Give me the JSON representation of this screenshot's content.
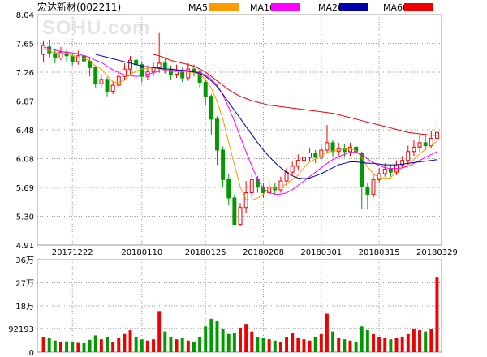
{
  "chart_data": {
    "type": "candlestick",
    "title": "宏达新材(002211)",
    "watermark": "SOHU.com",
    "legend": [
      {
        "name": "MA5",
        "color": "#ff9900"
      },
      {
        "name": "MA10",
        "color": "#ff00ff"
      },
      {
        "name": "MA20",
        "color": "#0000aa"
      },
      {
        "name": "MA60",
        "color": "#ee0000"
      }
    ],
    "colors": {
      "up": "#ee0000",
      "down": "#009900",
      "grid": "#999999",
      "frame": "#999999"
    },
    "price_axis": {
      "min": 4.91,
      "max": 8.04,
      "ticks": [
        "8.04",
        "7.65",
        "7.26",
        "6.87",
        "6.48",
        "6.08",
        "5.69",
        "5.30",
        "4.91"
      ]
    },
    "volume_axis": {
      "max": 360000,
      "ticks": [
        "36万",
        "27万",
        "18万",
        "92193",
        "0"
      ],
      "tick_values": [
        360000,
        270000,
        180000,
        92193,
        0
      ]
    },
    "x_tick_labels": [
      {
        "label": "20171222",
        "index": 5
      },
      {
        "label": "20180110",
        "index": 17
      },
      {
        "label": "20180125",
        "index": 28
      },
      {
        "label": "20180208",
        "index": 38
      },
      {
        "label": "20180301",
        "index": 48
      },
      {
        "label": "20180315",
        "index": 58
      },
      {
        "label": "20180329",
        "index": 68
      }
    ],
    "candles": [
      [
        7.5,
        7.62,
        7.68,
        7.4
      ],
      [
        7.6,
        7.52,
        7.7,
        7.46
      ],
      [
        7.52,
        7.45,
        7.58,
        7.38
      ],
      [
        7.45,
        7.53,
        7.6,
        7.42
      ],
      [
        7.53,
        7.48,
        7.56,
        7.4
      ],
      [
        7.48,
        7.4,
        7.52,
        7.35
      ],
      [
        7.4,
        7.48,
        7.55,
        7.36
      ],
      [
        7.48,
        7.41,
        7.52,
        7.32
      ],
      [
        7.41,
        7.32,
        7.45,
        7.2
      ],
      [
        7.32,
        7.1,
        7.35,
        7.05
      ],
      [
        7.1,
        7.16,
        7.22,
        7.05
      ],
      [
        7.16,
        7.0,
        7.19,
        6.93
      ],
      [
        7.0,
        7.08,
        7.14,
        6.96
      ],
      [
        7.08,
        7.2,
        7.28,
        7.05
      ],
      [
        7.2,
        7.3,
        7.38,
        7.15
      ],
      [
        7.3,
        7.42,
        7.48,
        7.22
      ],
      [
        7.42,
        7.36,
        7.45,
        7.28
      ],
      [
        7.36,
        7.2,
        7.4,
        7.12
      ],
      [
        7.2,
        7.26,
        7.35,
        7.15
      ],
      [
        7.26,
        7.32,
        7.4,
        7.2
      ],
      [
        7.32,
        7.38,
        7.79,
        7.25
      ],
      [
        7.38,
        7.3,
        7.46,
        7.24
      ],
      [
        7.3,
        7.23,
        7.35,
        7.16
      ],
      [
        7.23,
        7.28,
        7.36,
        7.18
      ],
      [
        7.28,
        7.18,
        7.32,
        7.12
      ],
      [
        7.18,
        7.3,
        7.38,
        7.14
      ],
      [
        7.3,
        7.26,
        7.36,
        7.2
      ],
      [
        7.26,
        7.12,
        7.3,
        7.05
      ],
      [
        7.12,
        6.93,
        7.15,
        6.8
      ],
      [
        6.93,
        6.62,
        6.96,
        6.4
      ],
      [
        6.62,
        6.2,
        6.66,
        6.0
      ],
      [
        6.2,
        5.8,
        6.25,
        5.7
      ],
      [
        5.8,
        5.55,
        5.88,
        5.45
      ],
      [
        5.55,
        5.19,
        5.6,
        5.19
      ],
      [
        5.19,
        5.42,
        5.48,
        5.17
      ],
      [
        5.42,
        5.62,
        5.78,
        5.35
      ],
      [
        5.62,
        5.8,
        5.88,
        5.55
      ],
      [
        5.8,
        5.7,
        5.85,
        5.62
      ],
      [
        5.7,
        5.62,
        5.76,
        5.55
      ],
      [
        5.62,
        5.7,
        5.78,
        5.58
      ],
      [
        5.7,
        5.66,
        5.76,
        5.6
      ],
      [
        5.66,
        5.78,
        5.84,
        5.62
      ],
      [
        5.78,
        5.9,
        5.96,
        5.72
      ],
      [
        5.9,
        5.98,
        6.04,
        5.86
      ],
      [
        5.98,
        6.06,
        6.14,
        5.92
      ],
      [
        6.06,
        6.1,
        6.18,
        6.0
      ],
      [
        6.1,
        6.16,
        6.22,
        6.04
      ],
      [
        6.16,
        6.1,
        6.2,
        6.02
      ],
      [
        6.1,
        6.2,
        6.28,
        6.06
      ],
      [
        6.2,
        6.3,
        6.54,
        6.15
      ],
      [
        6.3,
        6.18,
        6.34,
        6.1
      ],
      [
        6.18,
        6.22,
        6.3,
        6.12
      ],
      [
        6.22,
        6.18,
        6.28,
        6.1
      ],
      [
        6.18,
        6.24,
        6.3,
        6.12
      ],
      [
        6.24,
        6.16,
        6.28,
        6.08
      ],
      [
        6.16,
        5.7,
        6.18,
        5.4
      ],
      [
        5.7,
        5.6,
        5.76,
        5.4
      ],
      [
        5.6,
        5.8,
        5.88,
        5.55
      ],
      [
        5.8,
        5.88,
        5.96,
        5.76
      ],
      [
        5.88,
        5.94,
        6.02,
        5.84
      ],
      [
        5.94,
        5.9,
        6.0,
        5.84
      ],
      [
        5.9,
        6.0,
        6.06,
        5.86
      ],
      [
        6.0,
        6.06,
        6.12,
        5.96
      ],
      [
        6.06,
        6.18,
        6.26,
        6.0
      ],
      [
        6.18,
        6.24,
        6.34,
        6.12
      ],
      [
        6.24,
        6.3,
        6.4,
        6.18
      ],
      [
        6.3,
        6.26,
        6.42,
        6.2
      ],
      [
        6.26,
        6.36,
        6.46,
        6.22
      ],
      [
        6.36,
        6.44,
        6.6,
        6.3
      ]
    ],
    "volumes": [
      60000,
      55000,
      45000,
      40000,
      42000,
      38000,
      36000,
      35000,
      48000,
      65000,
      50000,
      60000,
      40000,
      55000,
      70000,
      85000,
      60000,
      50000,
      45000,
      50000,
      160000,
      80000,
      60000,
      50000,
      55000,
      45000,
      40000,
      60000,
      100000,
      130000,
      120000,
      90000,
      70000,
      75000,
      95000,
      110000,
      80000,
      60000,
      55000,
      50000,
      45000,
      40000,
      60000,
      75000,
      55000,
      50000,
      45000,
      60000,
      70000,
      150000,
      80000,
      55000,
      50000,
      45000,
      40000,
      100000,
      85000,
      70000,
      60000,
      55000,
      50000,
      55000,
      60000,
      70000,
      90000,
      85000,
      80000,
      90000,
      290000
    ],
    "ma5": [
      7.58,
      7.55,
      7.52,
      7.51,
      7.52,
      7.48,
      7.46,
      7.44,
      7.42,
      7.34,
      7.3,
      7.21,
      7.13,
      7.11,
      7.15,
      7.23,
      7.27,
      7.3,
      7.31,
      7.32,
      7.3,
      7.29,
      7.27,
      7.26,
      7.27,
      7.26,
      7.25,
      7.23,
      7.16,
      7.04,
      6.86,
      6.62,
      6.3,
      6.0,
      5.7,
      5.53,
      5.52,
      5.55,
      5.6,
      5.69,
      5.68,
      5.69,
      5.74,
      5.8,
      5.86,
      5.96,
      6.04,
      6.08,
      6.13,
      6.17,
      6.19,
      6.2,
      6.21,
      6.22,
      6.19,
      6.1,
      5.97,
      5.88,
      5.82,
      5.82,
      5.82,
      5.92,
      5.96,
      6.0,
      6.07,
      6.15,
      6.21,
      6.26,
      6.32
    ],
    "ma10": [
      7.6,
      7.58,
      7.56,
      7.54,
      7.53,
      7.52,
      7.51,
      7.48,
      7.46,
      7.42,
      7.39,
      7.34,
      7.29,
      7.25,
      7.22,
      7.21,
      7.2,
      7.21,
      7.23,
      7.25,
      7.27,
      7.28,
      7.28,
      7.28,
      7.29,
      7.28,
      7.27,
      7.25,
      7.22,
      7.16,
      7.08,
      6.95,
      6.78,
      6.59,
      6.38,
      6.18,
      5.98,
      5.8,
      5.68,
      5.62,
      5.6,
      5.6,
      5.62,
      5.66,
      5.72,
      5.78,
      5.84,
      5.9,
      5.96,
      6.02,
      6.07,
      6.11,
      6.14,
      6.17,
      6.17,
      6.14,
      6.08,
      6.03,
      5.99,
      5.96,
      5.95,
      5.95,
      5.96,
      5.98,
      6.02,
      6.06,
      6.1,
      6.14,
      6.18
    ],
    "ma20": [
      null,
      null,
      null,
      null,
      null,
      null,
      null,
      null,
      null,
      7.5,
      7.48,
      7.46,
      7.44,
      7.42,
      7.4,
      7.38,
      7.36,
      7.34,
      7.33,
      7.32,
      7.31,
      7.3,
      7.3,
      7.29,
      7.28,
      7.27,
      7.26,
      7.24,
      7.2,
      7.14,
      7.06,
      6.96,
      6.85,
      6.74,
      6.63,
      6.52,
      6.41,
      6.3,
      6.2,
      6.11,
      6.03,
      5.96,
      5.9,
      5.85,
      5.82,
      5.81,
      5.82,
      5.85,
      5.88,
      5.92,
      5.96,
      6.0,
      6.02,
      6.04,
      6.04,
      6.03,
      6.02,
      6.02,
      6.01,
      6.0,
      6.0,
      6.0,
      6.01,
      6.02,
      6.03,
      6.04,
      6.05,
      6.06,
      6.07
    ],
    "ma60": [
      null,
      null,
      null,
      null,
      null,
      null,
      null,
      null,
      null,
      null,
      null,
      null,
      null,
      null,
      null,
      null,
      null,
      null,
      null,
      7.5,
      7.48,
      7.45,
      7.42,
      7.4,
      7.38,
      7.36,
      7.34,
      7.3,
      7.26,
      7.2,
      7.14,
      7.08,
      7.02,
      6.97,
      6.93,
      6.9,
      6.87,
      6.85,
      6.83,
      6.81,
      6.8,
      6.79,
      6.78,
      6.77,
      6.76,
      6.75,
      6.74,
      6.73,
      6.72,
      6.71,
      6.7,
      6.68,
      6.66,
      6.64,
      6.62,
      6.6,
      6.58,
      6.56,
      6.54,
      6.52,
      6.5,
      6.48,
      6.46,
      6.44,
      6.43,
      6.42,
      6.41,
      6.4,
      6.4
    ]
  }
}
